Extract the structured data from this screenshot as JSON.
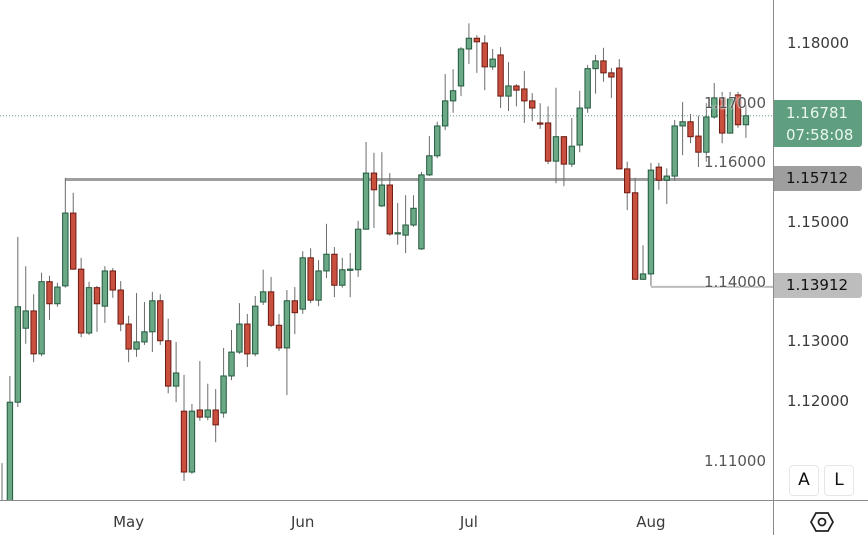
{
  "chart_data": {
    "type": "candlestick",
    "title": "",
    "y_ticks": [
      "1.18000",
      "1.17000",
      "1.16000",
      "1.15000",
      "1.14000",
      "1.13000",
      "1.12000",
      "1.11000"
    ],
    "y_tick_values": [
      1.18,
      1.17,
      1.16,
      1.15,
      1.14,
      1.13,
      1.12,
      1.11
    ],
    "ylim": [
      1.1033,
      1.1872
    ],
    "x_ticks": [
      {
        "label": "May",
        "index": 16
      },
      {
        "label": "Jun",
        "index": 38
      },
      {
        "label": "Jul",
        "index": 59
      },
      {
        "label": "Aug",
        "index": 82
      }
    ],
    "last_price": {
      "value": "1.16781",
      "countdown": "07:58:08",
      "price": 1.16781
    },
    "levels": [
      {
        "label": "1.15712",
        "price": 1.15712,
        "from_index": 8
      },
      {
        "label": "1.13912",
        "price": 1.13912,
        "from_index": 82
      }
    ],
    "colors": {
      "up": "#6aa886",
      "up_border": "#235a3e",
      "down": "#c9503f",
      "down_border": "#6e1b12",
      "last": "#5f9f7f",
      "level1": "#9e9e9e",
      "level2": "#bdbdbd"
    },
    "candles": [
      [
        1.099,
        1.1096,
        1.098,
        1.102
      ],
      [
        1.102,
        1.1242,
        1.101,
        1.1198
      ],
      [
        1.1198,
        1.1475,
        1.119,
        1.1358
      ],
      [
        1.1322,
        1.1426,
        1.1296,
        1.1351
      ],
      [
        1.1351,
        1.1379,
        1.1265,
        1.1279
      ],
      [
        1.1279,
        1.1415,
        1.1275,
        1.14
      ],
      [
        1.14,
        1.141,
        1.1336,
        1.1363
      ],
      [
        1.1363,
        1.1398,
        1.1358,
        1.1391
      ],
      [
        1.1393,
        1.1574,
        1.139,
        1.1515
      ],
      [
        1.1515,
        1.1549,
        1.142,
        1.1421
      ],
      [
        1.1421,
        1.144,
        1.1307,
        1.1314
      ],
      [
        1.1314,
        1.14,
        1.1311,
        1.139
      ],
      [
        1.139,
        1.1393,
        1.1316,
        1.1363
      ],
      [
        1.1359,
        1.1426,
        1.1331,
        1.1418
      ],
      [
        1.1418,
        1.1423,
        1.1373,
        1.1386
      ],
      [
        1.1386,
        1.1401,
        1.1317,
        1.1329
      ],
      [
        1.1329,
        1.1343,
        1.1265,
        1.1287
      ],
      [
        1.1287,
        1.1381,
        1.1274,
        1.1299
      ],
      [
        1.1299,
        1.1366,
        1.1294,
        1.1316
      ],
      [
        1.1316,
        1.1383,
        1.1282,
        1.1368
      ],
      [
        1.1368,
        1.1379,
        1.1294,
        1.1301
      ],
      [
        1.1301,
        1.1338,
        1.1213,
        1.1225
      ],
      [
        1.1225,
        1.1299,
        1.1198,
        1.1247
      ],
      [
        1.1183,
        1.1244,
        1.1066,
        1.1081
      ],
      [
        1.1081,
        1.1195,
        1.1078,
        1.1183
      ],
      [
        1.1185,
        1.1267,
        1.1167,
        1.1173
      ],
      [
        1.1173,
        1.1229,
        1.1168,
        1.1185
      ],
      [
        1.1185,
        1.122,
        1.1131,
        1.116
      ],
      [
        1.118,
        1.1289,
        1.1172,
        1.1242
      ],
      [
        1.1242,
        1.1319,
        1.1235,
        1.1282
      ],
      [
        1.1282,
        1.1364,
        1.1279,
        1.1329
      ],
      [
        1.1329,
        1.1346,
        1.1257,
        1.1279
      ],
      [
        1.1279,
        1.1376,
        1.1275,
        1.1359
      ],
      [
        1.1366,
        1.142,
        1.1361,
        1.1383
      ],
      [
        1.1383,
        1.1408,
        1.1324,
        1.1327
      ],
      [
        1.1327,
        1.1346,
        1.1284,
        1.1289
      ],
      [
        1.1289,
        1.1386,
        1.121,
        1.1368
      ],
      [
        1.1368,
        1.1391,
        1.1312,
        1.1348
      ],
      [
        1.1354,
        1.1451,
        1.1346,
        1.144
      ],
      [
        1.144,
        1.1456,
        1.1364,
        1.1369
      ],
      [
        1.1369,
        1.1436,
        1.1359,
        1.1418
      ],
      [
        1.1418,
        1.1497,
        1.1406,
        1.1446
      ],
      [
        1.1446,
        1.1458,
        1.1374,
        1.1394
      ],
      [
        1.1394,
        1.144,
        1.139,
        1.142
      ],
      [
        1.142,
        1.1448,
        1.1374,
        1.1421
      ],
      [
        1.142,
        1.1502,
        1.1408,
        1.1488
      ],
      [
        1.1488,
        1.1634,
        1.1487,
        1.1582
      ],
      [
        1.1582,
        1.1616,
        1.149,
        1.1554
      ],
      [
        1.1527,
        1.1617,
        1.1525,
        1.1562
      ],
      [
        1.1562,
        1.1582,
        1.1477,
        1.148
      ],
      [
        1.148,
        1.1532,
        1.1462,
        1.1482
      ],
      [
        1.1478,
        1.1545,
        1.1448,
        1.1495
      ],
      [
        1.1495,
        1.1545,
        1.1492,
        1.1523
      ],
      [
        1.1455,
        1.1584,
        1.1453,
        1.1579
      ],
      [
        1.1579,
        1.1644,
        1.1577,
        1.1611
      ],
      [
        1.1611,
        1.1668,
        1.1607,
        1.1661
      ],
      [
        1.1661,
        1.1748,
        1.1654,
        1.1703
      ],
      [
        1.1703,
        1.1756,
        1.1683,
        1.172
      ],
      [
        1.1728,
        1.1793,
        1.1711,
        1.179
      ],
      [
        1.179,
        1.1833,
        1.1765,
        1.1808
      ],
      [
        1.1808,
        1.1813,
        1.175,
        1.1802
      ],
      [
        1.18,
        1.1813,
        1.1721,
        1.176
      ],
      [
        1.176,
        1.179,
        1.1755,
        1.1773
      ],
      [
        1.178,
        1.1793,
        1.1691,
        1.1711
      ],
      [
        1.1711,
        1.1768,
        1.1686,
        1.1728
      ],
      [
        1.1728,
        1.1731,
        1.1694,
        1.1721
      ],
      [
        1.1723,
        1.1753,
        1.1666,
        1.1703
      ],
      [
        1.1703,
        1.1716,
        1.1669,
        1.1691
      ],
      [
        1.1666,
        1.1699,
        1.1656,
        1.1665
      ],
      [
        1.1666,
        1.1694,
        1.1597,
        1.1602
      ],
      [
        1.1602,
        1.1725,
        1.1565,
        1.1643
      ],
      [
        1.1643,
        1.1644,
        1.156,
        1.1597
      ],
      [
        1.1597,
        1.1674,
        1.1592,
        1.1627
      ],
      [
        1.1629,
        1.172,
        1.1617,
        1.1691
      ],
      [
        1.1691,
        1.1763,
        1.1683,
        1.1757
      ],
      [
        1.1757,
        1.178,
        1.1715,
        1.177
      ],
      [
        1.177,
        1.1792,
        1.1735,
        1.175
      ],
      [
        1.175,
        1.1758,
        1.1708,
        1.1743
      ],
      [
        1.1758,
        1.1773,
        1.1589,
        1.1589
      ],
      [
        1.1589,
        1.1601,
        1.152,
        1.1549
      ],
      [
        1.1549,
        1.1574,
        1.1404,
        1.1404
      ],
      [
        1.1404,
        1.1461,
        1.1403,
        1.1413
      ],
      [
        1.1413,
        1.1599,
        1.1393,
        1.1587
      ],
      [
        1.1592,
        1.1599,
        1.1554,
        1.157
      ],
      [
        1.157,
        1.159,
        1.153,
        1.1577
      ],
      [
        1.1577,
        1.1671,
        1.1569,
        1.1661
      ],
      [
        1.1661,
        1.1701,
        1.1612,
        1.1668
      ],
      [
        1.1668,
        1.1681,
        1.1632,
        1.1643
      ],
      [
        1.1644,
        1.1678,
        1.1592,
        1.1617
      ],
      [
        1.1617,
        1.1699,
        1.1601,
        1.1676
      ],
      [
        1.1676,
        1.1733,
        1.1673,
        1.1708
      ],
      [
        1.1708,
        1.1718,
        1.1632,
        1.1649
      ],
      [
        1.1649,
        1.1718,
        1.1648,
        1.1706
      ],
      [
        1.1713,
        1.1718,
        1.1658,
        1.1663
      ],
      [
        1.1663,
        1.1696,
        1.1641,
        1.1678
      ]
    ]
  },
  "controls": {
    "auto_label": "A",
    "log_label": "L",
    "settings_icon": "settings-hexagon-icon"
  }
}
